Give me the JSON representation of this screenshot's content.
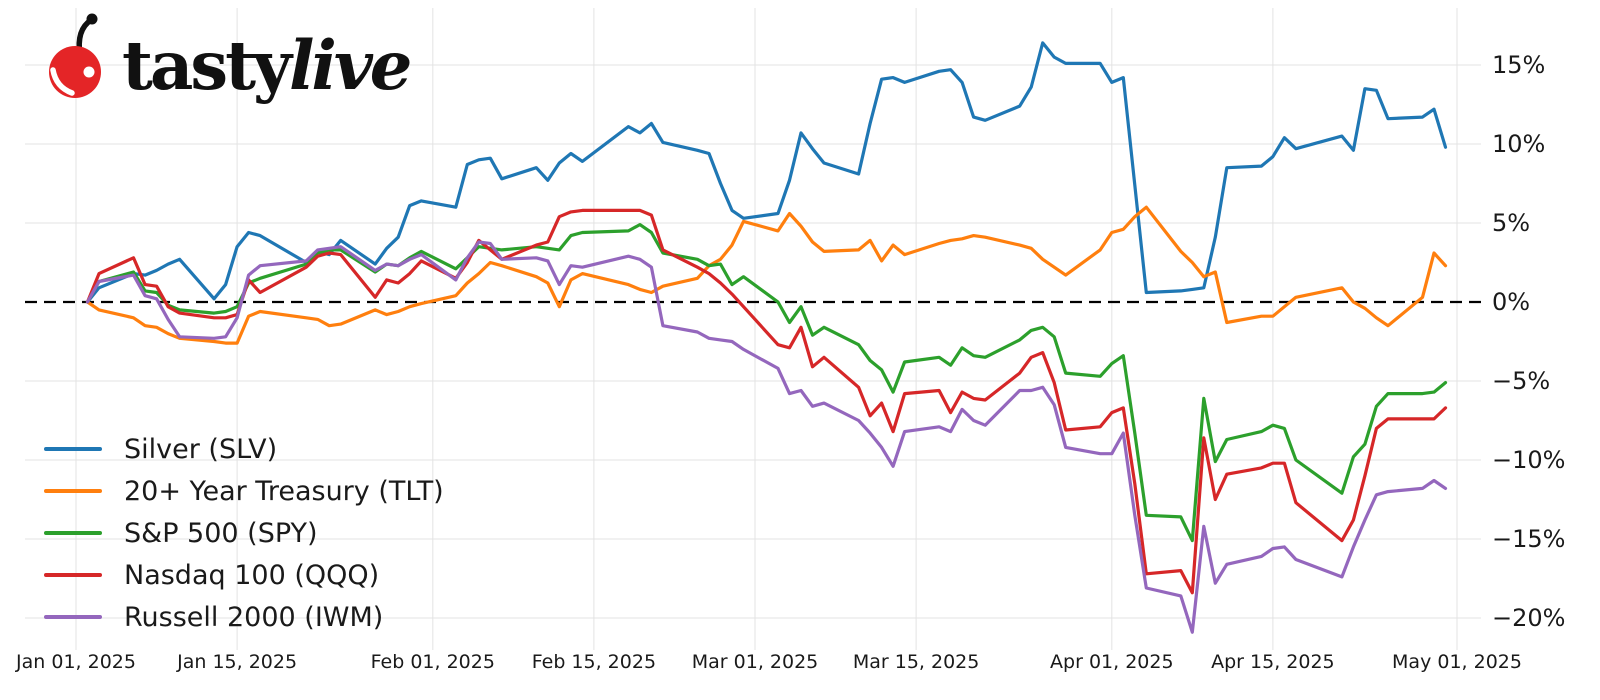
{
  "logo": {
    "brand_regular": "tasty",
    "brand_italic": "live",
    "cherry_color": "#e42527"
  },
  "chart_data": {
    "type": "line",
    "title": "",
    "background": "#ffffff",
    "grid": true,
    "grid_color": "#e3e3e3",
    "zero_line_color": "#000000",
    "legend_position": "lower-left",
    "x_axis_unit": "date",
    "x_range_days": [
      0,
      120
    ],
    "ylim": [
      -21.5,
      18.5
    ],
    "y_tick_labels": [
      "15%",
      "10%",
      "5%",
      "0%",
      "−5%",
      "−10%",
      "−15%",
      "−20%"
    ],
    "y_tick_values": [
      15,
      10,
      5,
      0,
      -5,
      -10,
      -15,
      -20
    ],
    "x_tick_labels": [
      "Jan 01, 2025",
      "Jan 15, 2025",
      "Feb 01, 2025",
      "Feb 15, 2025",
      "Mar 01, 2025",
      "Mar 15, 2025",
      "Apr 01, 2025",
      "Apr 15, 2025",
      "May 01, 2025"
    ],
    "x_tick_days": [
      0,
      14,
      31,
      45,
      59,
      73,
      90,
      104,
      120
    ],
    "x_days": [
      1,
      2,
      5,
      6,
      7,
      8,
      9,
      12,
      13,
      14,
      15,
      16,
      20,
      21,
      22,
      23,
      26,
      27,
      28,
      29,
      30,
      33,
      34,
      35,
      36,
      37,
      40,
      41,
      42,
      43,
      44,
      48,
      49,
      50,
      51,
      54,
      55,
      56,
      57,
      58,
      61,
      62,
      63,
      64,
      65,
      68,
      69,
      70,
      71,
      72,
      75,
      76,
      77,
      78,
      79,
      82,
      83,
      84,
      85,
      86,
      89,
      90,
      91,
      92,
      93,
      96,
      97,
      98,
      99,
      100,
      103,
      104,
      105,
      106,
      110,
      111,
      112,
      113,
      114,
      117,
      118,
      119
    ],
    "series": [
      {
        "name": "Silver (SLV)",
        "ticker": "slv",
        "color": "#1f77b4",
        "values": [
          0,
          0.9,
          1.8,
          1.7,
          2.0,
          2.4,
          2.7,
          0.2,
          1.1,
          3.5,
          4.4,
          4.2,
          2.5,
          3.2,
          3.0,
          3.9,
          2.4,
          3.4,
          4.1,
          6.1,
          6.4,
          6.0,
          8.7,
          9.0,
          9.1,
          7.8,
          8.5,
          7.7,
          8.8,
          9.4,
          8.9,
          11.1,
          10.7,
          11.3,
          10.1,
          9.6,
          9.4,
          7.5,
          5.8,
          5.3,
          5.6,
          7.7,
          10.7,
          9.7,
          8.8,
          8.1,
          11.3,
          14.1,
          14.2,
          13.9,
          14.6,
          14.7,
          13.9,
          11.7,
          11.5,
          12.4,
          13.6,
          16.4,
          15.5,
          15.1,
          15.1,
          13.9,
          14.2,
          7.4,
          0.6,
          0.7,
          0.8,
          0.9,
          4.1,
          8.5,
          8.6,
          9.2,
          10.4,
          9.7,
          10.5,
          9.6,
          13.5,
          13.4,
          11.6,
          11.7,
          12.2,
          9.8
        ]
      },
      {
        "name": "20+ Year Treasury (TLT)",
        "ticker": "tlt",
        "color": "#ff7f0e",
        "values": [
          0,
          -0.5,
          -1.0,
          -1.5,
          -1.6,
          -2.0,
          -2.3,
          -2.5,
          -2.6,
          -2.6,
          -0.9,
          -0.6,
          -1.0,
          -1.1,
          -1.5,
          -1.4,
          -0.5,
          -0.8,
          -0.6,
          -0.3,
          -0.1,
          0.4,
          1.2,
          1.8,
          2.5,
          2.3,
          1.6,
          1.2,
          -0.3,
          1.4,
          1.8,
          1.1,
          0.8,
          0.6,
          1.0,
          1.5,
          2.3,
          2.7,
          3.6,
          5.1,
          4.5,
          5.6,
          4.8,
          3.8,
          3.2,
          3.3,
          3.9,
          2.6,
          3.6,
          3.0,
          3.7,
          3.9,
          4.0,
          4.2,
          4.1,
          3.6,
          3.4,
          2.7,
          2.2,
          1.7,
          3.3,
          4.4,
          4.6,
          5.4,
          6.0,
          3.2,
          2.5,
          1.6,
          1.9,
          -1.3,
          -0.9,
          -0.9,
          -0.3,
          0.3,
          0.9,
          0.0,
          -0.4,
          -1.0,
          -1.5,
          0.3,
          3.1,
          2.3
        ]
      },
      {
        "name": "S&P 500 (SPY)",
        "ticker": "spy",
        "color": "#2ca02c",
        "values": [
          0,
          1.3,
          1.9,
          0.7,
          0.6,
          -0.2,
          -0.5,
          -0.7,
          -0.6,
          -0.3,
          1.2,
          1.5,
          2.4,
          3.1,
          3.3,
          3.3,
          1.9,
          2.4,
          2.3,
          2.8,
          3.2,
          2.1,
          2.8,
          3.5,
          3.4,
          3.3,
          3.5,
          3.4,
          3.3,
          4.2,
          4.4,
          4.5,
          4.9,
          4.4,
          3.1,
          2.7,
          2.3,
          2.4,
          1.1,
          1.6,
          0.0,
          -1.3,
          -0.3,
          -2.1,
          -1.6,
          -2.7,
          -3.7,
          -4.3,
          -5.7,
          -3.8,
          -3.5,
          -4.0,
          -2.9,
          -3.4,
          -3.5,
          -2.4,
          -1.8,
          -1.6,
          -2.2,
          -4.5,
          -4.7,
          -3.9,
          -3.4,
          -8.3,
          -13.5,
          -13.6,
          -15.1,
          -6.1,
          -10.1,
          -8.7,
          -8.2,
          -7.8,
          -8.0,
          -10.0,
          -12.1,
          -9.8,
          -9.0,
          -6.6,
          -5.8,
          -5.8,
          -5.7,
          -5.1
        ]
      },
      {
        "name": "Nasdaq 100 (QQQ)",
        "ticker": "qqq",
        "color": "#d62728",
        "values": [
          0,
          1.8,
          2.8,
          1.1,
          1.0,
          -0.3,
          -0.7,
          -1.0,
          -1.0,
          -0.8,
          1.4,
          0.6,
          2.2,
          2.9,
          3.1,
          3.0,
          0.3,
          1.4,
          1.2,
          1.8,
          2.6,
          1.5,
          2.5,
          3.9,
          3.3,
          2.7,
          3.6,
          3.8,
          5.4,
          5.7,
          5.8,
          5.8,
          5.8,
          5.5,
          3.3,
          2.2,
          1.8,
          1.2,
          0.5,
          -0.3,
          -2.7,
          -2.9,
          -1.6,
          -4.1,
          -3.5,
          -5.4,
          -7.2,
          -6.4,
          -8.2,
          -5.8,
          -5.6,
          -7.0,
          -5.7,
          -6.1,
          -6.2,
          -4.5,
          -3.5,
          -3.2,
          -5.1,
          -8.1,
          -7.9,
          -7.0,
          -6.7,
          -11.5,
          -17.2,
          -17.0,
          -18.4,
          -8.6,
          -12.5,
          -10.9,
          -10.5,
          -10.2,
          -10.2,
          -12.7,
          -15.1,
          -13.8,
          -11.0,
          -8.0,
          -7.4,
          -7.4,
          -7.4,
          -6.7
        ]
      },
      {
        "name": "Russell 2000 (IWM)",
        "ticker": "iwm",
        "color": "#9467bd",
        "values": [
          0,
          1.3,
          1.7,
          0.4,
          0.2,
          -1.1,
          -2.2,
          -2.3,
          -2.2,
          -1.0,
          1.7,
          2.3,
          2.6,
          3.3,
          3.4,
          3.5,
          2.0,
          2.4,
          2.3,
          2.7,
          3.0,
          1.4,
          2.8,
          3.8,
          3.7,
          2.7,
          2.8,
          2.6,
          1.1,
          2.3,
          2.2,
          2.9,
          2.7,
          2.2,
          -1.5,
          -1.9,
          -2.3,
          -2.4,
          -2.5,
          -3.0,
          -4.2,
          -5.8,
          -5.6,
          -6.6,
          -6.4,
          -7.5,
          -8.3,
          -9.2,
          -10.4,
          -8.2,
          -7.9,
          -8.2,
          -6.8,
          -7.5,
          -7.8,
          -5.6,
          -5.6,
          -5.4,
          -6.5,
          -9.2,
          -9.6,
          -9.6,
          -8.3,
          -13.5,
          -18.1,
          -18.6,
          -20.9,
          -14.2,
          -17.8,
          -16.6,
          -16.1,
          -15.6,
          -15.5,
          -16.3,
          -17.4,
          -15.5,
          -13.8,
          -12.2,
          -12.0,
          -11.8,
          -11.3,
          -11.8
        ]
      }
    ]
  }
}
